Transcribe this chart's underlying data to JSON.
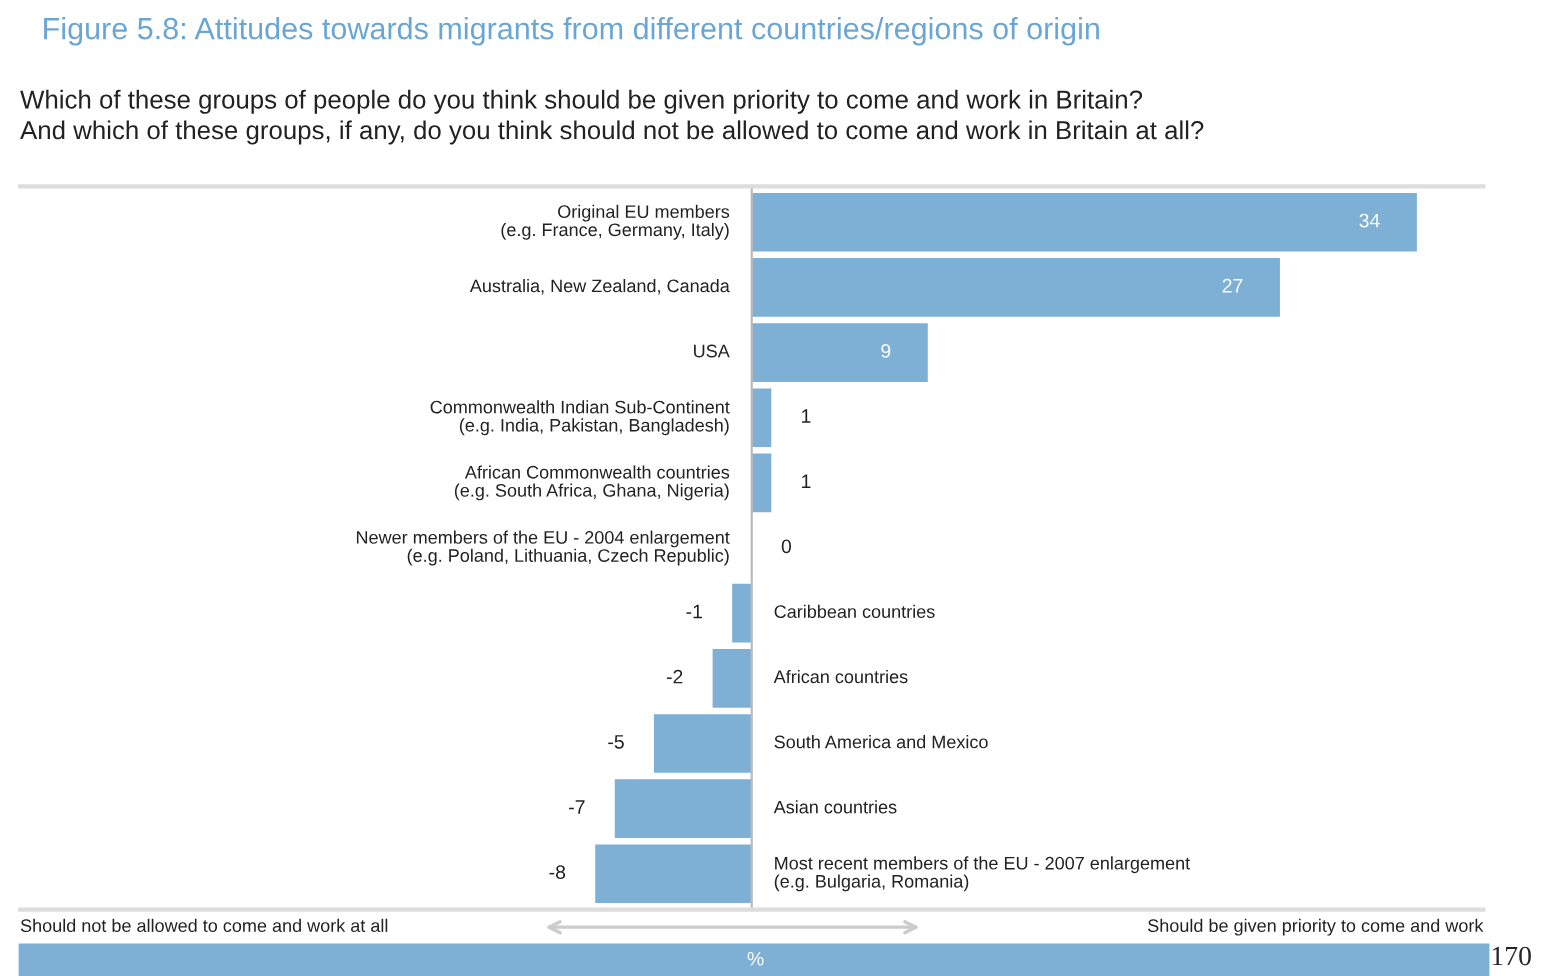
{
  "chart_data": {
    "type": "bar",
    "orientation": "horizontal",
    "title": "Figure 5.8: Attitudes towards migrants from different countries/regions of origin",
    "subtitle": "Which of these groups of people do you think should be given priority to come and work in Britain?\nAnd which of these groups, if any, do you think should not be allowed to come and work in Britain at all?",
    "categories": [
      "Original EU members\n(e.g. France, Germany, Italy)",
      "Australia, New Zealand, Canada",
      "USA",
      "Commonwealth Indian Sub-Continent\n(e.g. India, Pakistan, Bangladesh)",
      "African Commonwealth countries\n(e.g. South Africa, Ghana, Nigeria)",
      "Newer members of the EU - 2004 enlargement\n(e.g. Poland, Lithuania, Czech Republic)",
      "Caribbean countries",
      "African countries",
      "South America and Mexico",
      "Asian countries",
      "Most recent members of the EU - 2007 enlargement\n(e.g. Bulgaria, Romania)"
    ],
    "values": [
      34,
      27,
      9,
      1,
      1,
      0,
      -1,
      -2,
      -5,
      -7,
      -8
    ],
    "color": "#7eb0d5",
    "data_labels": true,
    "xlabel": "%",
    "annotations": [
      "Should not be allowed to come and work at all",
      "Should be given priority to come and work",
      "170"
    ]
  }
}
